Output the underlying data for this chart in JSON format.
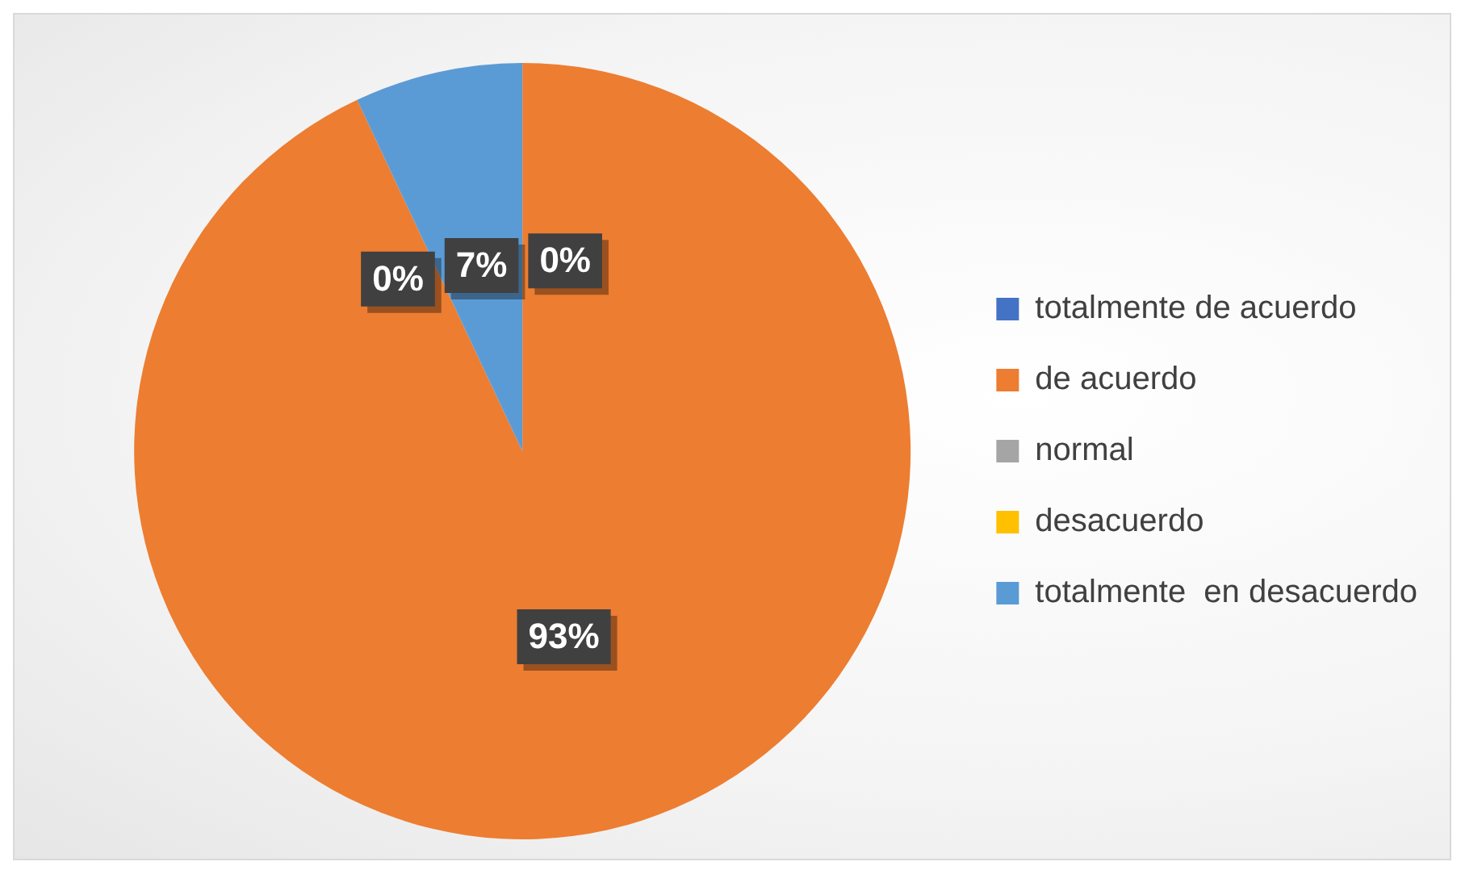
{
  "chart_data": {
    "type": "pie",
    "categories": [
      "totalmente de acuerdo",
      "de acuerdo",
      "normal",
      "desacuerdo",
      "totalmente  en desacuerdo"
    ],
    "values": [
      0,
      93,
      0,
      0,
      7
    ],
    "colors": [
      "#4472c4",
      "#ed7d31",
      "#a5a5a5",
      "#ffc000",
      "#5b9bd5"
    ],
    "value_labels": [
      "0%",
      "93%",
      null,
      "0%",
      "7%"
    ],
    "legend": "right"
  }
}
